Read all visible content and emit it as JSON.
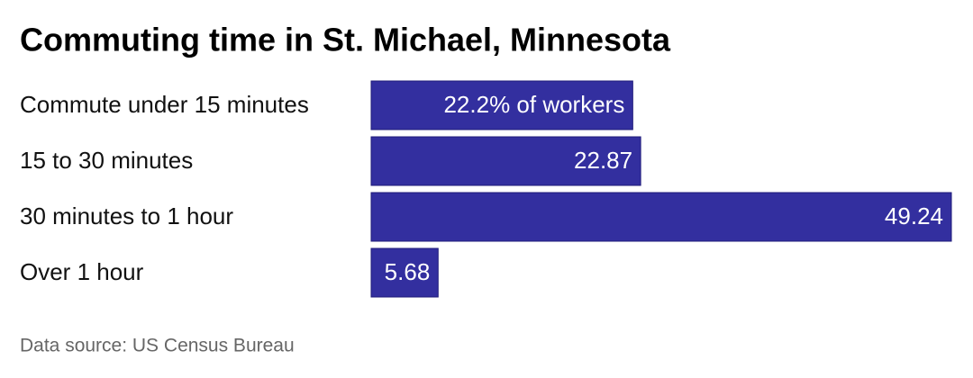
{
  "chart_data": {
    "type": "bar",
    "orientation": "horizontal",
    "title": "Commuting time in St. Michael, Minnesota",
    "categories": [
      "Commute under 15 minutes",
      "15 to 30 minutes",
      "30 minutes to 1 hour",
      "Over 1 hour"
    ],
    "values": [
      22.2,
      22.87,
      49.24,
      5.68
    ],
    "value_labels": [
      "22.2% of workers",
      "22.87",
      "49.24",
      "5.68"
    ],
    "color": "#332f9f",
    "source": "Data source: US Census Bureau"
  }
}
